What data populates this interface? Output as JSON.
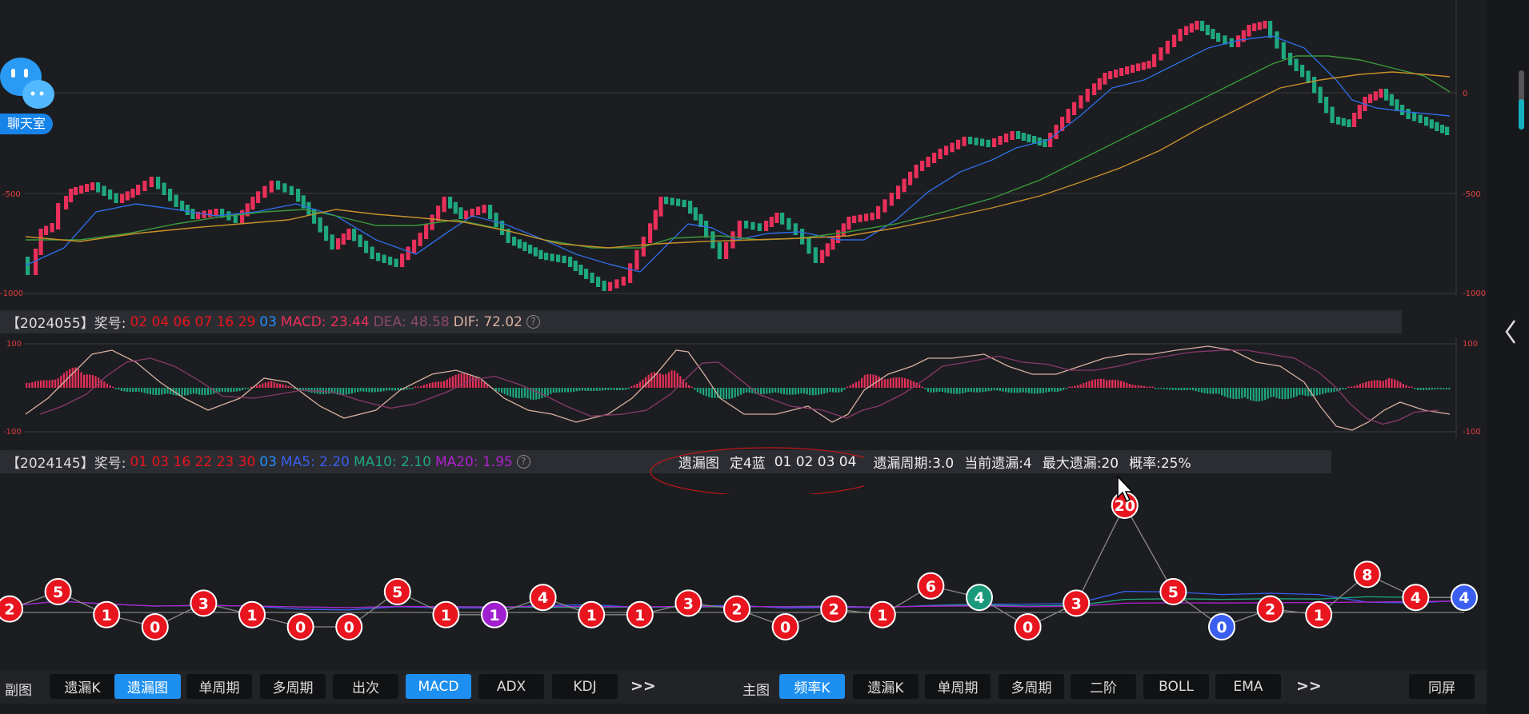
{
  "chat_widget": {
    "label": "聊天室"
  },
  "main_chart": {
    "axis_left": {
      "top": "",
      "mid": "-500",
      "bottom": "-1000"
    },
    "axis_right": {
      "top": "0",
      "mid": "-500",
      "bottom": "-1000"
    }
  },
  "macd_info": {
    "period": "【2024055】奖号:",
    "red_numbers": "02 04 06 07 16 29",
    "blue_number": "03",
    "macd": "MACD: 23.44",
    "dea": "DEA: 48.58",
    "dif": "DIF: 72.02",
    "help": "?"
  },
  "macd_chart": {
    "axis_top": "100",
    "axis_bottom": "-100"
  },
  "miss_info": {
    "period": "【2024145】奖号:",
    "red_numbers": "01 03 16 22 23 30",
    "blue_number": "03",
    "ma5": "MA5: 2.20",
    "ma10": "MA10: 2.10",
    "ma20": "MA20: 1.95",
    "help": "?",
    "chart_name": "遗漏图",
    "filter": "定4蓝",
    "filter_values": "01 02 03 04",
    "cycle": "遗漏周期:3.0",
    "current": "当前遗漏:4",
    "max": "最大遗漏:20",
    "probability": "概率:25%"
  },
  "miss_chart": {
    "values": [
      2,
      5,
      1,
      0,
      3,
      1,
      0,
      0,
      5,
      1,
      1,
      4,
      1,
      1,
      3,
      2,
      0,
      2,
      1,
      6,
      4,
      0,
      3,
      20,
      5,
      0,
      2,
      1,
      8,
      4,
      4
    ],
    "special_colors": {
      "10": "#a020d0",
      "20": "#1a9a7a",
      "25": "#3a5ef0",
      "30": "#3a5ef0"
    },
    "default_color": "#e8141e"
  },
  "bottom_bar": {
    "sub_label": "副图",
    "sub_buttons": [
      {
        "label": "遗漏K",
        "active": false
      },
      {
        "label": "遗漏图",
        "active": true
      },
      {
        "label": "单周期",
        "active": false
      },
      {
        "label": "多周期",
        "active": false
      },
      {
        "label": "出次",
        "active": false
      },
      {
        "label": "MACD",
        "active": true
      },
      {
        "label": "ADX",
        "active": false
      },
      {
        "label": "KDJ",
        "active": false
      }
    ],
    "sub_more": ">>",
    "main_label": "主图",
    "main_buttons": [
      {
        "label": "频率K",
        "active": true
      },
      {
        "label": "遗漏K",
        "active": false
      },
      {
        "label": "单周期",
        "active": false
      },
      {
        "label": "多周期",
        "active": false
      },
      {
        "label": "二阶",
        "active": false
      },
      {
        "label": "BOLL",
        "active": false
      },
      {
        "label": "EMA",
        "active": false
      }
    ],
    "main_more": ">>",
    "same_screen": "同屏"
  },
  "side": {
    "collapse_icon": "chevron-left-icon"
  },
  "colors": {
    "up": "#e8305a",
    "down": "#1fa77f",
    "ma_blue": "#2e6be0",
    "ma_green": "#3a9a3a",
    "ma_orange": "#c8902a",
    "red_text": "#e8141e",
    "blue_text": "#1f8fff"
  }
}
